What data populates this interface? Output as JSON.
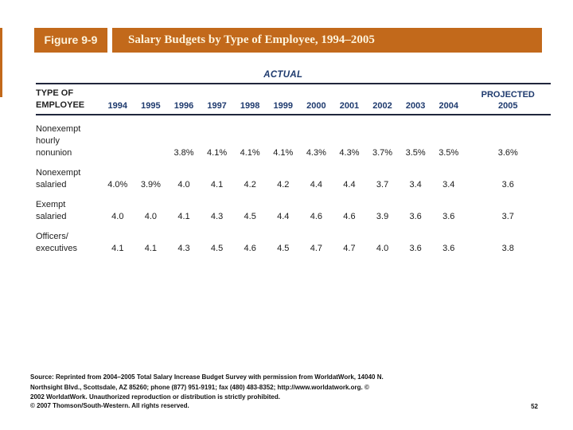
{
  "colors": {
    "accent_orange": "#c2691b",
    "header_navy": "#1e3a6e"
  },
  "header": {
    "figure_label": "Figure 9-9",
    "title": "Salary Budgets by Type of Employee, 1994–2005"
  },
  "table": {
    "group_header": "ACTUAL",
    "type_of": [
      "TYPE OF",
      "EMPLOYEE"
    ],
    "years": [
      "1994",
      "1995",
      "1996",
      "1997",
      "1998",
      "1999",
      "2000",
      "2001",
      "2002",
      "2003",
      "2004"
    ],
    "projected": [
      "PROJECTED",
      "2005"
    ],
    "rows": [
      {
        "label": [
          "Nonexempt",
          "hourly",
          "nonunion"
        ],
        "values": [
          "",
          "",
          "3.8%",
          "4.1%",
          "4.1%",
          "4.1%",
          "4.3%",
          "4.3%",
          "3.7%",
          "3.5%",
          "3.5%"
        ],
        "projected": "3.6%"
      },
      {
        "label": [
          "Nonexempt",
          "salaried"
        ],
        "values": [
          "4.0%",
          "3.9%",
          "4.0",
          "4.1",
          "4.2",
          "4.2",
          "4.4",
          "4.4",
          "3.7",
          "3.4",
          "3.4"
        ],
        "projected": "3.6"
      },
      {
        "label": [
          "Exempt",
          "salaried"
        ],
        "values": [
          "4.0",
          "4.0",
          "4.1",
          "4.3",
          "4.5",
          "4.4",
          "4.6",
          "4.6",
          "3.9",
          "3.6",
          "3.6"
        ],
        "projected": "3.7"
      },
      {
        "label": [
          "Officers/",
          "executives"
        ],
        "values": [
          "4.1",
          "4.1",
          "4.3",
          "4.5",
          "4.6",
          "4.5",
          "4.7",
          "4.7",
          "4.0",
          "3.6",
          "3.6"
        ],
        "projected": "3.8"
      }
    ]
  },
  "footer": {
    "source_lines": [
      "Source: Reprinted from 2004–2005 Total Salary Increase Budget Survey with permission from WorldatWork, 14040 N.",
      "Northsight Blvd., Scottsdale, AZ 85260; phone (877) 951-9191; fax (480) 483-8352; http://www.worldatwork.org. ©",
      "2002 WorldatWork. Unauthorized reproduction or distribution is strictly prohibited."
    ],
    "copyright": "© 2007 Thomson/South-Western. All rights reserved.",
    "page_number": "52"
  }
}
